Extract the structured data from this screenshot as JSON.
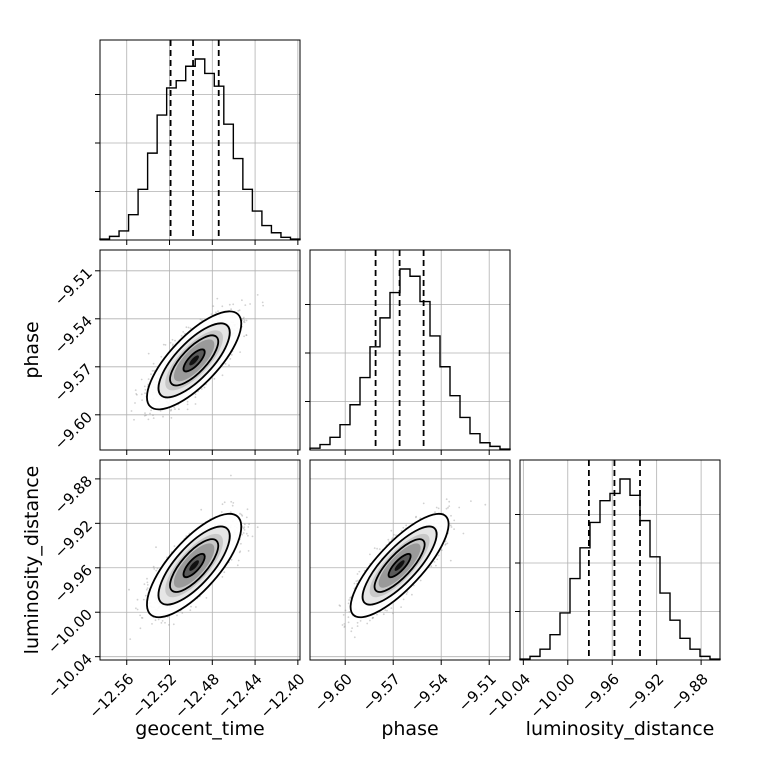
{
  "chart_data": {
    "type": "corner",
    "parameters": [
      "geocent_time",
      "phase",
      "luminosity_distance"
    ],
    "axis_labels": {
      "x": [
        "geocent_time",
        "phase",
        "luminosity_distance"
      ],
      "y": [
        "phase",
        "luminosity_distance"
      ]
    },
    "grid": true,
    "ranges": {
      "geocent_time": [
        -12.585,
        -12.398
      ],
      "phase": [
        -9.622,
        -9.497
      ],
      "luminosity_distance": [
        -10.043,
        -9.863
      ]
    },
    "ticks": {
      "geocent_time": {
        "values": [
          -12.56,
          -12.52,
          -12.48,
          -12.44,
          -12.4
        ],
        "labels": [
          "−12.56",
          "−12.52",
          "−12.48",
          "−12.44",
          "−12.40"
        ]
      },
      "phase": {
        "values": [
          -9.6,
          -9.57,
          -9.54,
          -9.51
        ],
        "labels": [
          "−9.60",
          "−9.57",
          "−9.54",
          "−9.51"
        ]
      },
      "luminosity_distance": {
        "values": [
          -10.04,
          -10.0,
          -9.96,
          -9.92,
          -9.88
        ],
        "labels": [
          "−10.04",
          "−10.00",
          "−9.96",
          "−9.92",
          "−9.88"
        ]
      }
    },
    "quantiles": {
      "geocent_time": [
        -12.519,
        -12.498,
        -12.474
      ],
      "phase": [
        -9.581,
        -9.566,
        -9.551
      ],
      "luminosity_distance": [
        -9.981,
        -9.958,
        -9.935
      ]
    },
    "histograms": {
      "geocent_time": [
        0.005,
        0.02,
        0.05,
        0.14,
        0.28,
        0.48,
        0.69,
        0.84,
        0.88,
        0.96,
        1.0,
        0.92,
        0.85,
        0.64,
        0.45,
        0.28,
        0.16,
        0.08,
        0.04,
        0.015,
        0.005
      ],
      "phase": [
        0.01,
        0.03,
        0.07,
        0.14,
        0.25,
        0.4,
        0.57,
        0.73,
        0.87,
        1.0,
        0.96,
        0.82,
        0.63,
        0.46,
        0.3,
        0.18,
        0.09,
        0.04,
        0.02,
        0.005
      ],
      "luminosity_distance": [
        0.005,
        0.02,
        0.06,
        0.14,
        0.26,
        0.45,
        0.62,
        0.76,
        0.88,
        0.92,
        1.0,
        0.91,
        0.77,
        0.57,
        0.37,
        0.22,
        0.12,
        0.06,
        0.02,
        0.005
      ]
    },
    "pairs": [
      {
        "x": "geocent_time",
        "y": "phase",
        "mean": [
          -12.497,
          -9.566
        ],
        "sd": [
          0.018,
          0.0125
        ],
        "rho": 0.75
      },
      {
        "x": "geocent_time",
        "y": "luminosity_distance",
        "mean": [
          -12.497,
          -9.958
        ],
        "sd": [
          0.018,
          0.019
        ],
        "rho": 0.75
      },
      {
        "x": "phase",
        "y": "luminosity_distance",
        "mean": [
          -9.566,
          -9.958
        ],
        "sd": [
          0.0125,
          0.019
        ],
        "rho": 0.8
      }
    ]
  }
}
